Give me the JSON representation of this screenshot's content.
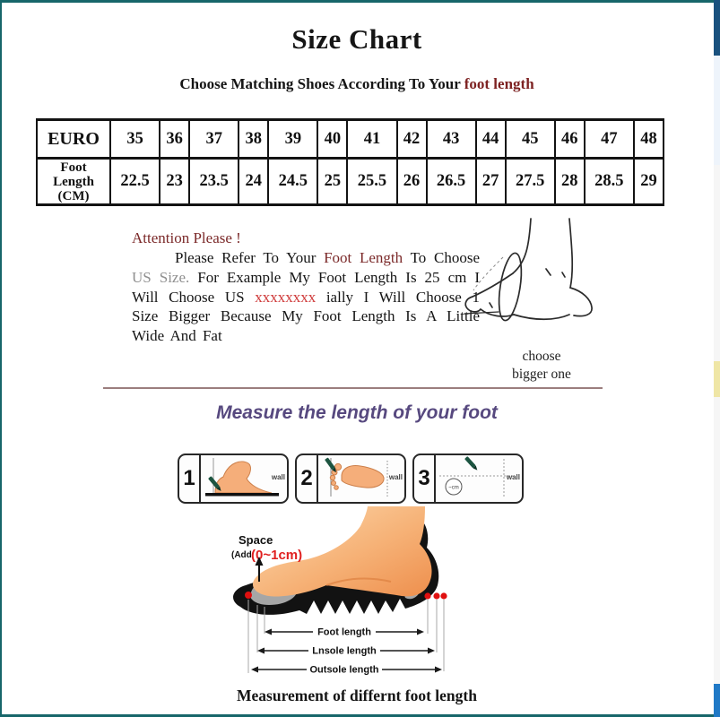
{
  "page": {
    "title": "Size Chart",
    "subtitle_prefix": "Choose Matching Shoes According To Your ",
    "subtitle_highlight": "foot length",
    "bottom_caption": "Measurement of differnt foot length"
  },
  "size_table": {
    "header_label": "EURO",
    "row_label": "Foot\nLength\n(CM)",
    "euro_sizes": [
      "35",
      "36",
      "37",
      "38",
      "39",
      "40",
      "41",
      "42",
      "43",
      "44",
      "45",
      "46",
      "47",
      "48"
    ],
    "foot_lengths": [
      "22.5",
      "23",
      "23.5",
      "24",
      "24.5",
      "25",
      "25.5",
      "26",
      "26.5",
      "27",
      "27.5",
      "28",
      "28.5",
      "29"
    ]
  },
  "attention": {
    "heading": "Attention Please !",
    "p1": "Please Refer To Your ",
    "foot_length": "Foot Length",
    "p2": " To Choose ",
    "us_size": "US Size.",
    "p3": " For Example My Foot Length Is 25 cm I Will Choose US ",
    "redacted": "xxxxxxxx",
    "p4": " ially I Will Choose 1 Size Bigger Because My Foot Length Is A Little Wide And Fat"
  },
  "sketch": {
    "caption1": "choose",
    "caption2": "bigger one"
  },
  "measure": {
    "heading": "Measure the length of your foot",
    "circle_label": "~cm",
    "steps": [
      {
        "number": "1",
        "wall": "wall"
      },
      {
        "number": "2",
        "wall": "wall"
      },
      {
        "number": "3",
        "wall": "wall"
      }
    ]
  },
  "diagram": {
    "space": "Space",
    "add": "(Add",
    "add_value": "(0~1cm)",
    "measurements": [
      "Foot length",
      "Lnsole length",
      "Outsole length"
    ]
  },
  "colors": {
    "frame_teal": "#17666a",
    "strip_navy": "#19517e",
    "strip_blue": "#2079c6",
    "strip_yellow": "#efe6a6",
    "maroon_text": "#7b2929",
    "red_text": "#cf3a3a",
    "gray_text": "#8f8f8f",
    "purple_heading": "#57497f",
    "divider_mauve": "#9b7e7e",
    "skin": "#f5ae7a",
    "pencil_green": "#1c5440",
    "dot_red": "#e01010"
  }
}
